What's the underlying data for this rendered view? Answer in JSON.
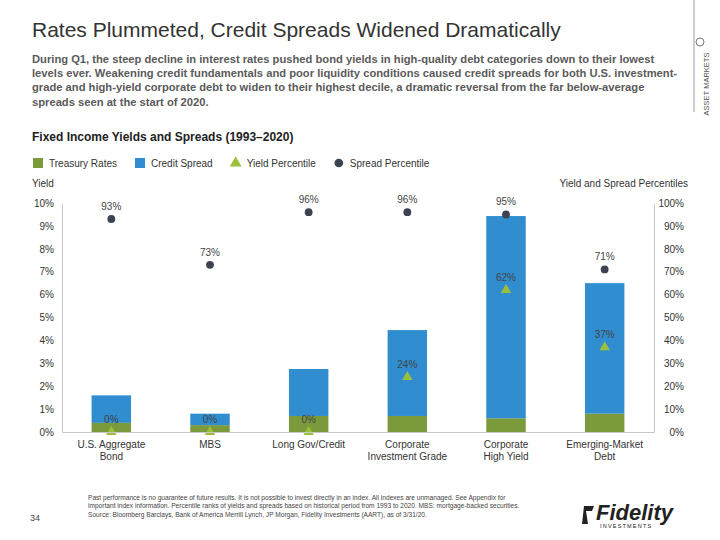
{
  "page": {
    "title": "Rates Plummeted, Credit Spreads Widened Dramatically",
    "subtitle": "During Q1, the steep decline in interest rates pushed bond yields in high-quality debt categories down to their lowest levels ever. Weakening credit fundamentals and poor liquidity conditions caused credit spreads for both U.S. investment-grade and high-yield corporate debt to widen to their highest decile, a dramatic reversal from the far below-average spreads seen at the start of 2020.",
    "side_label": "ASSET MARKETS",
    "footnote": "Past performance is no guarantee of future results. It is not possible to invest directly in an index. All indexes are unmanaged. See Appendix for important index information. Percentile ranks of yields and spreads based on historical period from 1993 to 2020. MBS: mortgage-backed securities. Source: Bloomberg Barclays, Bank of America Merrill Lynch, JP Morgan, Fidelity Investments (AART), as of 3/31/20.",
    "page_number": "34",
    "logo_text": "Fidelity",
    "logo_subtext": "INVESTMENTS"
  },
  "chart_data": {
    "type": "bar",
    "title": "Fixed Income Yields and Spreads (1993–2020)",
    "y_label": "Yield",
    "y2_label": "Yield and Spread Percentiles",
    "stacked": true,
    "grid": false,
    "legend": "top",
    "categories": [
      "U.S. Aggregate Bond",
      "MBS",
      "Long Gov/Credit",
      "Corporate Investment Grade",
      "Corporate High Yield",
      "Emerging-Market Debt"
    ],
    "series": [
      {
        "name": "Treasury Rates",
        "type": "bar",
        "color": "#7a9a3c",
        "values": [
          0.4,
          0.3,
          0.7,
          0.7,
          0.6,
          0.8
        ]
      },
      {
        "name": "Credit Spread",
        "type": "bar",
        "color": "#2f8dd0",
        "values": [
          1.2,
          0.5,
          2.05,
          3.75,
          8.83,
          5.7
        ]
      },
      {
        "name": "Yield Percentile",
        "type": "scatter",
        "marker": "triangle",
        "axis": "y2",
        "color": "#9cbf3b",
        "data_labels": true,
        "values": [
          0,
          0,
          0,
          24,
          62,
          37
        ],
        "value_labels": [
          "0%",
          "0%",
          "0%",
          "24%",
          "62%",
          "37%"
        ]
      },
      {
        "name": "Spread Percentile",
        "type": "scatter",
        "marker": "circle",
        "axis": "y2",
        "color": "#3b4350",
        "data_labels": true,
        "values": [
          93,
          73,
          96,
          96,
          95,
          71
        ],
        "value_labels": [
          "93%",
          "73%",
          "96%",
          "96%",
          "95%",
          "71%"
        ]
      }
    ],
    "ylim": [
      0,
      10
    ],
    "yticks": [
      {
        "value": 0,
        "label": "0%"
      },
      {
        "value": 1,
        "label": "1%"
      },
      {
        "value": 2,
        "label": "2%"
      },
      {
        "value": 3,
        "label": "3%"
      },
      {
        "value": 4,
        "label": "4%"
      },
      {
        "value": 5,
        "label": "5%"
      },
      {
        "value": 6,
        "label": "6%"
      },
      {
        "value": 7,
        "label": "7%"
      },
      {
        "value": 8,
        "label": "8%"
      },
      {
        "value": 9,
        "label": "9%"
      },
      {
        "value": 10,
        "label": "10%"
      }
    ],
    "y2lim": [
      0,
      100
    ],
    "y2ticks": [
      {
        "value": 0,
        "label": "0%"
      },
      {
        "value": 10,
        "label": "10%"
      },
      {
        "value": 20,
        "label": "20%"
      },
      {
        "value": 30,
        "label": "30%"
      },
      {
        "value": 40,
        "label": "40%"
      },
      {
        "value": 50,
        "label": "50%"
      },
      {
        "value": 60,
        "label": "60%"
      },
      {
        "value": 70,
        "label": "70%"
      },
      {
        "value": 80,
        "label": "80%"
      },
      {
        "value": 90,
        "label": "90%"
      },
      {
        "value": 100,
        "label": "100%"
      }
    ]
  }
}
